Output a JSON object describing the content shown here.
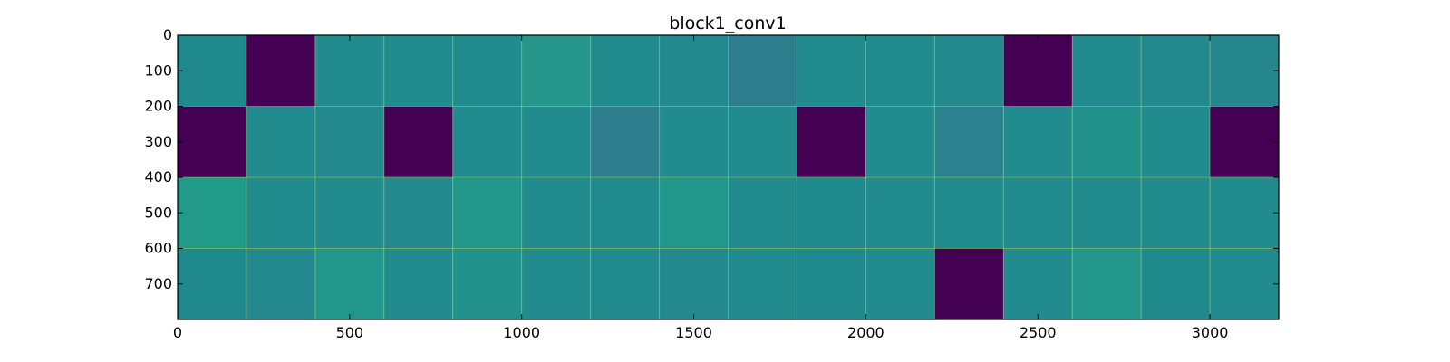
{
  "chart_data": {
    "type": "heatmap",
    "title": "block1_conv1",
    "xlabel": "",
    "ylabel": "",
    "xlim": [
      0,
      3200
    ],
    "ylim": [
      800,
      0
    ],
    "y_axis_inverted": true,
    "x_ticks": [
      0,
      500,
      1000,
      1500,
      2000,
      2500,
      3000
    ],
    "x_tick_labels": [
      "0",
      "500",
      "1000",
      "1500",
      "2000",
      "2500",
      "3000"
    ],
    "y_ticks": [
      0,
      100,
      200,
      300,
      400,
      500,
      600,
      700
    ],
    "y_tick_labels": [
      "0",
      "100",
      "200",
      "300",
      "400",
      "500",
      "600",
      "700"
    ],
    "grid": false,
    "colormap": "viridis",
    "tile_size": 200,
    "grid_rows": 4,
    "grid_cols": 16,
    "tile_colors": [
      [
        "#20898c",
        "#440154",
        "#228b8d",
        "#228b8d",
        "#228b8d",
        "#27968a",
        "#228b8d",
        "#23898e",
        "#2d7f8e",
        "#228b8d",
        "#228b8d",
        "#23898e",
        "#440154",
        "#228b8d",
        "#23898e",
        "#25868e"
      ],
      [
        "#440154",
        "#228b8d",
        "#23898e",
        "#440154",
        "#228b8d",
        "#228b8d",
        "#2e7e8e",
        "#228b8d",
        "#228b8d",
        "#440154",
        "#228b8d",
        "#2b828e",
        "#228b8d",
        "#22918c",
        "#228b8d",
        "#440154"
      ],
      [
        "#229a8a",
        "#228b8d",
        "#228b8d",
        "#23898e",
        "#21968b",
        "#228b8d",
        "#228b8d",
        "#21968b",
        "#228b8d",
        "#20898e",
        "#228b8d",
        "#228b8d",
        "#228b8d",
        "#228b8d",
        "#228b8d",
        "#228b8d"
      ],
      [
        "#20898c",
        "#23898e",
        "#21968b",
        "#228b8d",
        "#22918c",
        "#228b8d",
        "#228b8d",
        "#23898e",
        "#228b8d",
        "#20898e",
        "#228b8d",
        "#440154",
        "#228b8d",
        "#22968b",
        "#20898c",
        "#228b8d"
      ]
    ]
  }
}
